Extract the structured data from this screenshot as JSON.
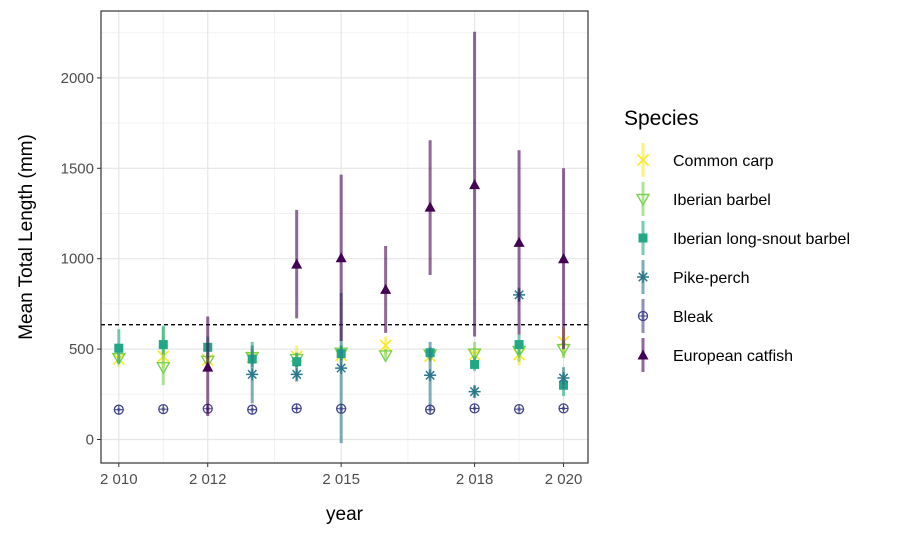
{
  "chart_data": {
    "type": "scatter",
    "subtype": "point-range",
    "title": "",
    "xlabel": "year",
    "ylabel": "Mean Total Length (mm)",
    "xlim": [
      2009.6,
      2020.55
    ],
    "ylim": [
      -130,
      2370
    ],
    "x_ticks": [
      2010,
      2012,
      2015,
      2018,
      2020
    ],
    "x_tick_labels": [
      "2 010",
      "2 012",
      "2 015",
      "2 018",
      "2 020"
    ],
    "y_ticks": [
      0,
      500,
      1000,
      1500,
      2000
    ],
    "y_tick_labels": [
      "0",
      "500",
      "1000",
      "1500",
      "2000"
    ],
    "x_minor_grid": [
      2011,
      2013.5,
      2016.5,
      2019
    ],
    "y_minor_grid": [
      250,
      750,
      1250,
      1750,
      2250
    ],
    "reference_line": {
      "y": 635,
      "style": "dashed",
      "color": "#000000"
    },
    "grid": true,
    "legend": {
      "title": "Species",
      "placement": "right"
    },
    "series": [
      {
        "name": "Common carp",
        "color": "#FDE725",
        "marker": "x",
        "points": [
          {
            "x": 2010,
            "y": 445,
            "lo": 400,
            "hi": 490
          },
          {
            "x": 2011,
            "y": 460,
            "lo": 400,
            "hi": 530
          },
          {
            "x": 2012,
            "y": 440,
            "lo": 390,
            "hi": 490
          },
          {
            "x": 2013,
            "y": 455,
            "lo": 420,
            "hi": 500
          },
          {
            "x": 2014,
            "y": 460,
            "lo": 400,
            "hi": 520
          },
          {
            "x": 2015,
            "y": 465,
            "lo": 420,
            "hi": 510
          },
          {
            "x": 2016,
            "y": 520,
            "lo": 470,
            "hi": 570
          },
          {
            "x": 2017,
            "y": 460,
            "lo": 430,
            "hi": 500
          },
          {
            "x": 2018,
            "y": 470,
            "lo": 430,
            "hi": 510
          },
          {
            "x": 2019,
            "y": 470,
            "lo": 410,
            "hi": 530
          },
          {
            "x": 2020,
            "y": 540,
            "lo": 460,
            "hi": 620
          }
        ]
      },
      {
        "name": "Iberian barbel",
        "color": "#7AD151",
        "marker": "triangle-down-open",
        "points": [
          {
            "x": 2010,
            "y": 450,
            "lo": 420,
            "hi": 490
          },
          {
            "x": 2011,
            "y": 400,
            "lo": 300,
            "hi": 620
          },
          {
            "x": 2012,
            "y": 435,
            "lo": 390,
            "hi": 480
          },
          {
            "x": 2013,
            "y": 455,
            "lo": 420,
            "hi": 500
          },
          {
            "x": 2014,
            "y": 445,
            "lo": 410,
            "hi": 480
          },
          {
            "x": 2015,
            "y": 480,
            "lo": 440,
            "hi": 520
          },
          {
            "x": 2016,
            "y": 465,
            "lo": 440,
            "hi": 500
          },
          {
            "x": 2017,
            "y": 470,
            "lo": 440,
            "hi": 500
          },
          {
            "x": 2018,
            "y": 475,
            "lo": 410,
            "hi": 540
          },
          {
            "x": 2019,
            "y": 490,
            "lo": 430,
            "hi": 550
          },
          {
            "x": 2020,
            "y": 500,
            "lo": 450,
            "hi": 550
          }
        ]
      },
      {
        "name": "Iberian long-snout barbel",
        "color": "#22A884",
        "marker": "square",
        "points": [
          {
            "x": 2010,
            "y": 505,
            "lo": 420,
            "hi": 610
          },
          {
            "x": 2011,
            "y": 525,
            "lo": 470,
            "hi": 630
          },
          {
            "x": 2012,
            "y": 510,
            "lo": 450,
            "hi": 570
          },
          {
            "x": 2013,
            "y": 445,
            "lo": 400,
            "hi": 540
          },
          {
            "x": 2014,
            "y": 430,
            "lo": 400,
            "hi": 480
          },
          {
            "x": 2015,
            "y": 475,
            "lo": 430,
            "hi": 520
          },
          {
            "x": 2017,
            "y": 480,
            "lo": 450,
            "hi": 510
          },
          {
            "x": 2018,
            "y": 415,
            "lo": 380,
            "hi": 460
          },
          {
            "x": 2019,
            "y": 525,
            "lo": 470,
            "hi": 580
          },
          {
            "x": 2020,
            "y": 300,
            "lo": 240,
            "hi": 360
          }
        ]
      },
      {
        "name": "Pike-perch",
        "color": "#2A788E",
        "marker": "asterisk",
        "points": [
          {
            "x": 2013,
            "y": 360,
            "lo": 200,
            "hi": 520
          },
          {
            "x": 2014,
            "y": 360,
            "lo": 320,
            "hi": 410
          },
          {
            "x": 2015,
            "y": 395,
            "lo": -20,
            "hi": 810
          },
          {
            "x": 2017,
            "y": 355,
            "lo": 170,
            "hi": 540
          },
          {
            "x": 2018,
            "y": 265,
            "lo": 230,
            "hi": 300
          },
          {
            "x": 2019,
            "y": 800,
            "lo": 760,
            "hi": 840
          },
          {
            "x": 2020,
            "y": 340,
            "lo": 280,
            "hi": 400
          }
        ]
      },
      {
        "name": "Bleak",
        "color": "#414487",
        "marker": "circle-plus",
        "points": [
          {
            "x": 2010,
            "y": 165,
            "lo": 155,
            "hi": 175
          },
          {
            "x": 2011,
            "y": 168,
            "lo": 158,
            "hi": 178
          },
          {
            "x": 2012,
            "y": 170,
            "lo": 160,
            "hi": 180
          },
          {
            "x": 2013,
            "y": 165,
            "lo": 155,
            "hi": 175
          },
          {
            "x": 2014,
            "y": 172,
            "lo": 162,
            "hi": 182
          },
          {
            "x": 2015,
            "y": 170,
            "lo": 160,
            "hi": 180
          },
          {
            "x": 2017,
            "y": 165,
            "lo": 155,
            "hi": 175
          },
          {
            "x": 2018,
            "y": 172,
            "lo": 162,
            "hi": 182
          },
          {
            "x": 2019,
            "y": 168,
            "lo": 158,
            "hi": 178
          },
          {
            "x": 2020,
            "y": 172,
            "lo": 162,
            "hi": 182
          }
        ]
      },
      {
        "name": "European catfish",
        "color": "#440154",
        "marker": "triangle",
        "points": [
          {
            "x": 2012,
            "y": 400,
            "lo": 130,
            "hi": 680
          },
          {
            "x": 2014,
            "y": 970,
            "lo": 670,
            "hi": 1270
          },
          {
            "x": 2015,
            "y": 1005,
            "lo": 545,
            "hi": 1465
          },
          {
            "x": 2016,
            "y": 830,
            "lo": 590,
            "hi": 1070
          },
          {
            "x": 2017,
            "y": 1285,
            "lo": 910,
            "hi": 1655
          },
          {
            "x": 2018,
            "y": 1410,
            "lo": 570,
            "hi": 2255
          },
          {
            "x": 2019,
            "y": 1090,
            "lo": 580,
            "hi": 1600
          },
          {
            "x": 2020,
            "y": 1000,
            "lo": 500,
            "hi": 1500
          }
        ]
      }
    ]
  }
}
